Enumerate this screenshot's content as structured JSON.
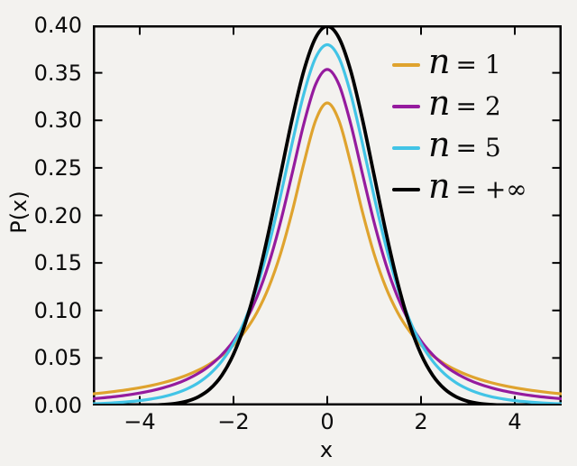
{
  "figure": {
    "background": "#f3f2ef",
    "axis_color": "#000000",
    "tick_length": 8,
    "tick_width": 2,
    "frame_width": 2.5
  },
  "chart_data": {
    "type": "line",
    "title": "",
    "xlabel": "x",
    "ylabel": "P(x)",
    "xlim": [
      -5,
      5
    ],
    "ylim": [
      0,
      0.4
    ],
    "grid": false,
    "legend_position": "upper right",
    "x_ticks": [
      -4,
      -2,
      0,
      2,
      4
    ],
    "x_tick_labels": [
      "−4",
      "−2",
      "0",
      "2",
      "4"
    ],
    "y_ticks": [
      0,
      0.05,
      0.1,
      0.15,
      0.2,
      0.25,
      0.3,
      0.35,
      0.4
    ],
    "y_tick_labels": [
      "0.00",
      "0.05",
      "0.10",
      "0.15",
      "0.20",
      "0.25",
      "0.30",
      "0.35",
      "0.40"
    ],
    "x": [
      -5,
      -4.75,
      -4.5,
      -4.25,
      -4,
      -3.75,
      -3.5,
      -3.25,
      -3,
      -2.75,
      -2.5,
      -2.25,
      -2,
      -1.75,
      -1.5,
      -1.25,
      -1,
      -0.75,
      -0.5,
      -0.25,
      0,
      0.25,
      0.5,
      0.75,
      1,
      1.25,
      1.5,
      1.75,
      2,
      2.25,
      2.5,
      2.75,
      3,
      3.25,
      3.5,
      3.75,
      4,
      4.25,
      4.5,
      4.75,
      5
    ],
    "series": [
      {
        "name": "n = 1",
        "legend_var": "n",
        "legend_rest": "= 1",
        "color": "#DFA32E",
        "line_width": 3.2,
        "peak": 0.3183,
        "values": [
          0.0122,
          0.0135,
          0.015,
          0.0167,
          0.0187,
          0.0211,
          0.024,
          0.0275,
          0.0318,
          0.0372,
          0.0439,
          0.0525,
          0.0637,
          0.0784,
          0.0979,
          0.1242,
          0.1592,
          0.2037,
          0.2546,
          0.2996,
          0.3183,
          0.2996,
          0.2546,
          0.2037,
          0.1592,
          0.1242,
          0.0979,
          0.0784,
          0.0637,
          0.0525,
          0.0439,
          0.0372,
          0.0318,
          0.0275,
          0.024,
          0.0211,
          0.0187,
          0.0167,
          0.015,
          0.0135,
          0.0122
        ]
      },
      {
        "name": "n = 2",
        "legend_var": "n",
        "legend_rest": "= 2",
        "color": "#951B9E",
        "line_width": 3.2,
        "peak": 0.3536,
        "values": [
          0.0071,
          0.0082,
          0.0095,
          0.0111,
          0.0131,
          0.0155,
          0.0186,
          0.0224,
          0.0274,
          0.0338,
          0.0422,
          0.0533,
          0.068,
          0.0878,
          0.1142,
          0.1487,
          0.1925,
          0.2438,
          0.2963,
          0.3376,
          0.3536,
          0.3376,
          0.2963,
          0.2438,
          0.1925,
          0.1487,
          0.1142,
          0.0878,
          0.068,
          0.0533,
          0.0422,
          0.0338,
          0.0274,
          0.0224,
          0.0186,
          0.0155,
          0.0131,
          0.0111,
          0.0095,
          0.0082,
          0.0071
        ]
      },
      {
        "name": "n = 5",
        "legend_var": "n",
        "legend_rest": "= 5",
        "color": "#42C4E6",
        "line_width": 3.2,
        "peak": 0.3796,
        "values": [
          0.0018,
          0.0023,
          0.003,
          0.0039,
          0.0051,
          0.0069,
          0.0092,
          0.0126,
          0.0173,
          0.0239,
          0.0333,
          0.0466,
          0.0651,
          0.0905,
          0.1245,
          0.1679,
          0.2197,
          0.2757,
          0.3279,
          0.3657,
          0.3796,
          0.3657,
          0.3279,
          0.2757,
          0.2197,
          0.1679,
          0.1245,
          0.0905,
          0.0651,
          0.0466,
          0.0333,
          0.0239,
          0.0173,
          0.0126,
          0.0092,
          0.0069,
          0.0051,
          0.0039,
          0.003,
          0.0023,
          0.0018
        ]
      },
      {
        "name": "n = +∞",
        "legend_var": "n",
        "legend_rest": "= +∞",
        "color": "#000000",
        "line_width": 3.8,
        "peak": 0.3989,
        "values": [
          0.0,
          0.0,
          0.0,
          0.0001,
          0.0001,
          0.0003,
          0.0009,
          0.002,
          0.0044,
          0.0091,
          0.0175,
          0.0317,
          0.054,
          0.0862,
          0.1295,
          0.1826,
          0.242,
          0.3011,
          0.3521,
          0.3867,
          0.3989,
          0.3867,
          0.3521,
          0.3011,
          0.242,
          0.1826,
          0.1295,
          0.0862,
          0.054,
          0.0317,
          0.0175,
          0.0091,
          0.0044,
          0.002,
          0.0009,
          0.0003,
          0.0001,
          0.0001,
          0.0,
          0.0,
          0.0
        ]
      }
    ]
  }
}
